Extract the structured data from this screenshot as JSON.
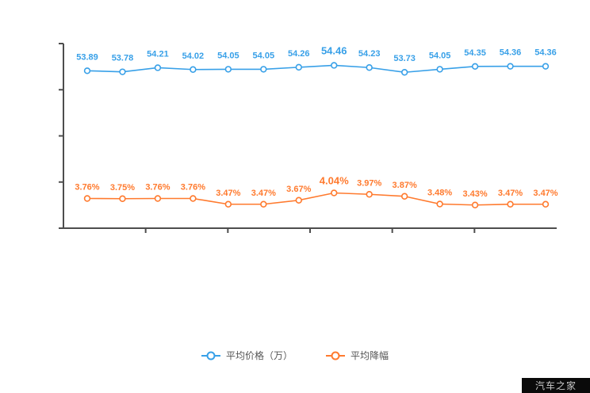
{
  "colors": {
    "blue": "#38a0e8",
    "orange": "#ff7a2e",
    "axis": "#4d4d4d"
  },
  "legend": {
    "items": [
      {
        "label": "平均价格（万）",
        "color": "#38a0e8"
      },
      {
        "label": "平均降幅",
        "color": "#ff7a2e"
      }
    ]
  },
  "watermark": "汽车之家",
  "chart_data": {
    "type": "line",
    "x_labels_visible": false,
    "emphasis_index": 7,
    "series": [
      {
        "name": "平均价格（万）",
        "color": "#38a0e8",
        "values": [
          53.89,
          53.78,
          54.21,
          54.02,
          54.05,
          54.05,
          54.26,
          54.46,
          54.23,
          53.73,
          54.05,
          54.35,
          54.36,
          54.36
        ],
        "labels": [
          "53.89",
          "53.78",
          "54.21",
          "54.02",
          "54.05",
          "54.05",
          "54.26",
          "54.46",
          "54.23",
          "53.73",
          "54.05",
          "54.35",
          "54.36",
          "54.36"
        ]
      },
      {
        "name": "平均降幅",
        "color": "#ff7a2e",
        "values": [
          3.76,
          3.75,
          3.76,
          3.76,
          3.47,
          3.47,
          3.67,
          4.04,
          3.97,
          3.87,
          3.48,
          3.43,
          3.47,
          3.47
        ],
        "labels": [
          "3.76%",
          "3.75%",
          "3.76%",
          "3.76%",
          "3.47%",
          "3.47%",
          "3.67%",
          "4.04%",
          "3.97%",
          "3.87%",
          "3.48%",
          "3.43%",
          "3.47%",
          "3.47%"
        ]
      }
    ],
    "ylim_left_axis": "not labeled in image",
    "grid": false,
    "legend_position": "bottom-center"
  }
}
